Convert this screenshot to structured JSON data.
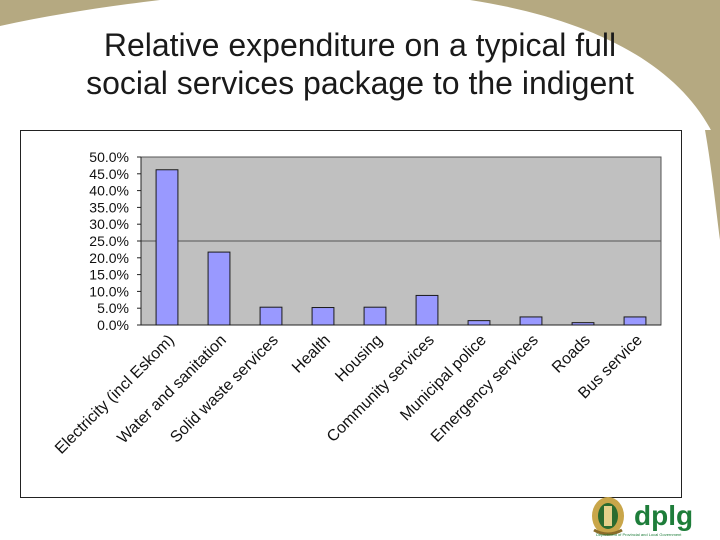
{
  "slide": {
    "title_line1": "Relative expenditure on a typical full",
    "title_line2": "social services package to the indigent"
  },
  "colors": {
    "background_band": "#b5a981",
    "plot_area": "#c0c0c0",
    "bar_fill": "#9999ff",
    "bar_stroke": "#1a1a1a",
    "logo_green": "#1e7d3a"
  },
  "logo": {
    "text": "dplg",
    "caption": "Department of Provincial and Local Government"
  },
  "chart_data": {
    "type": "bar",
    "categories": [
      "Electricity (incl Eskom)",
      "Water and sanitation",
      "Solid waste services",
      "Health",
      "Housing",
      "Community services",
      "Municipal police",
      "Emergency services",
      "Roads",
      "Bus service"
    ],
    "values": [
      0.462,
      0.217,
      0.053,
      0.052,
      0.053,
      0.088,
      0.013,
      0.024,
      0.007,
      0.024
    ],
    "ytick_labels": [
      "0.0%",
      "5.0%",
      "10.0%",
      "15.0%",
      "20.0%",
      "25.0%",
      "30.0%",
      "35.0%",
      "40.0%",
      "45.0%",
      "50.0%"
    ],
    "ylim": [
      0,
      0.5
    ],
    "title": "",
    "xlabel": "",
    "ylabel": "",
    "grid": "major gridlines at 25% and 50%",
    "legend": "none"
  }
}
